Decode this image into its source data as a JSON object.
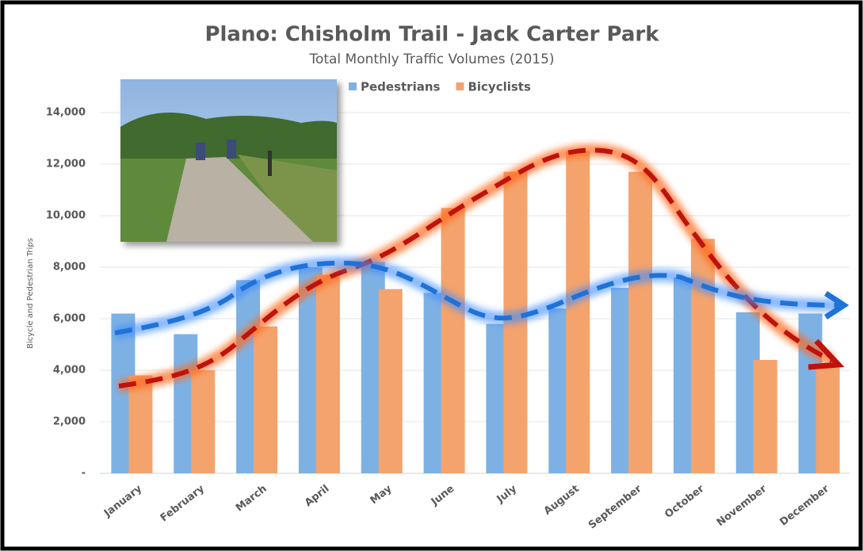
{
  "chart_data": {
    "type": "bar",
    "title": "Plano: Chisholm Trail - Jack Carter Park",
    "subtitle": "Total Monthly Traffic Volumes (2015)",
    "y_axis_label": "Bicycle and Pedestrian Trips",
    "categories": [
      "January",
      "February",
      "March",
      "April",
      "May",
      "June",
      "July",
      "August",
      "September",
      "October",
      "November",
      "December"
    ],
    "series": [
      {
        "name": "Pedestrians",
        "color": "#7eb1e3",
        "values": [
          6200,
          5400,
          7500,
          8000,
          8200,
          7000,
          5800,
          6400,
          7200,
          7600,
          6250,
          6200
        ]
      },
      {
        "name": "Bicyclists",
        "color": "#f4a36d",
        "values": [
          3800,
          4000,
          5700,
          7700,
          7150,
          10300,
          11700,
          12500,
          11700,
          9100,
          4400,
          4200
        ]
      }
    ],
    "ylim": [
      0,
      14000
    ],
    "yticks": [
      {
        "value": 0,
        "label": "-"
      },
      {
        "value": 2000,
        "label": "2,000"
      },
      {
        "value": 4000,
        "label": "4,000"
      },
      {
        "value": 6000,
        "label": "6,000"
      },
      {
        "value": 8000,
        "label": "8,000"
      },
      {
        "value": 10000,
        "label": "10,000"
      },
      {
        "value": 12000,
        "label": "12,000"
      },
      {
        "value": 14000,
        "label": "14,000"
      }
    ],
    "grid": true,
    "legend": "top"
  }
}
